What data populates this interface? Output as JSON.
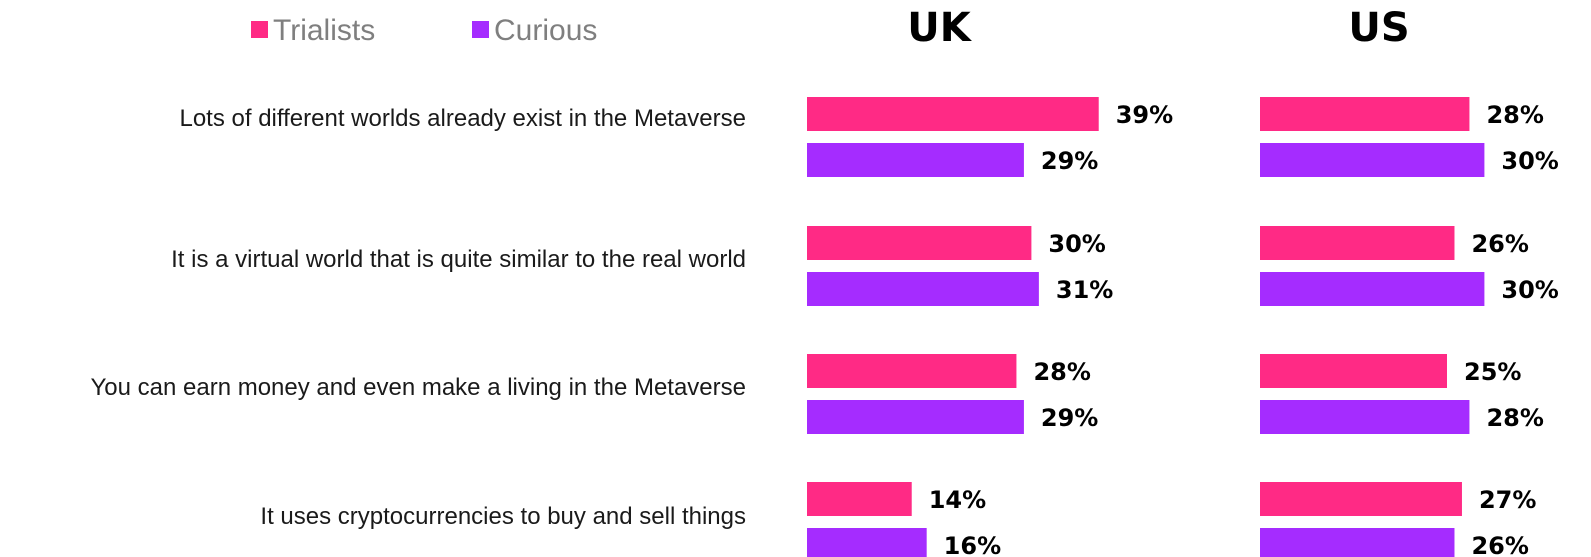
{
  "chart_data": {
    "type": "bar",
    "orientation": "horizontal",
    "legend_position": "top-left",
    "grid": false,
    "categories": [
      "Lots of different worlds already exist in the Metaverse",
      "It is a virtual world that is quite similar to the real world",
      "You can earn money and even make a living in the Metaverse",
      "It uses cryptocurrencies to buy and sell things"
    ],
    "legend": [
      {
        "name": "Trialists",
        "color": "#FF2A85"
      },
      {
        "name": "Curious",
        "color": "#A52CFF"
      }
    ],
    "panels": [
      {
        "title": "UK",
        "series": [
          {
            "name": "Trialists",
            "values": [
              39,
              30,
              28,
              14
            ],
            "labels": [
              "39%",
              "30%",
              "28%",
              "14%"
            ]
          },
          {
            "name": "Curious",
            "values": [
              29,
              31,
              29,
              16
            ],
            "labels": [
              "29%",
              "31%",
              "29%",
              "16%"
            ]
          }
        ]
      },
      {
        "title": "US",
        "series": [
          {
            "name": "Trialists",
            "values": [
              28,
              26,
              25,
              27
            ],
            "labels": [
              "28%",
              "26%",
              "25%",
              "27%"
            ]
          },
          {
            "name": "Curious",
            "values": [
              30,
              30,
              28,
              26
            ],
            "labels": [
              "30%",
              "30%",
              "28%",
              "26%"
            ]
          }
        ]
      }
    ]
  }
}
